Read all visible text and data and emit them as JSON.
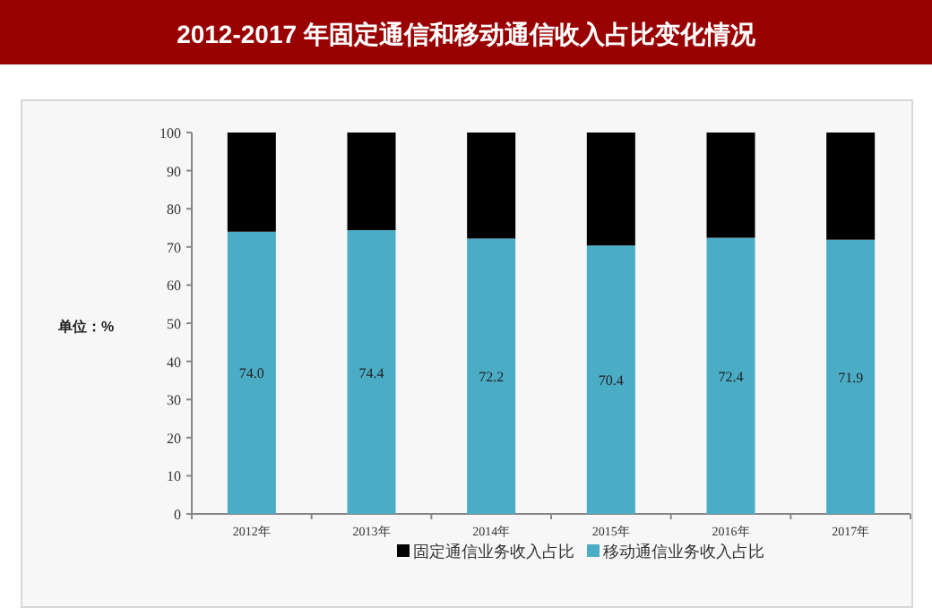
{
  "chart_data": {
    "type": "bar",
    "title": "2012-2017 年固定通信和移动通信收入占比变化情况",
    "ylabel": "单位：%",
    "categories": [
      "2012年",
      "2013年",
      "2014年",
      "2015年",
      "2016年",
      "2017年"
    ],
    "stacked": true,
    "ylim": [
      0,
      100
    ],
    "yticks": [
      0,
      10,
      20,
      30,
      40,
      50,
      60,
      70,
      80,
      90,
      100
    ],
    "grid": false,
    "legend": "bottom",
    "series": [
      {
        "name": "移动通信业务收入占比",
        "color": "#4bacc6",
        "values": [
          74.0,
          74.4,
          72.2,
          70.4,
          72.4,
          71.9
        ],
        "value_labels": [
          "74.0",
          "74.4",
          "72.2",
          "70.4",
          "72.4",
          "71.9"
        ]
      },
      {
        "name": "固定通信业务收入占比",
        "color": "#000000",
        "values": [
          26.0,
          25.6,
          27.8,
          29.6,
          27.6,
          28.1
        ]
      }
    ]
  }
}
